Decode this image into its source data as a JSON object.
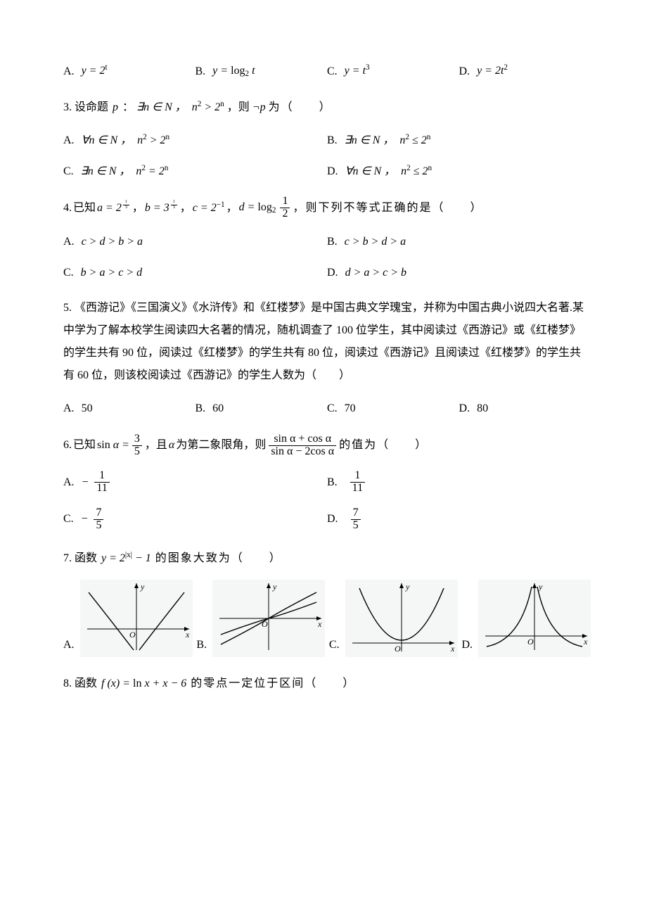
{
  "q_prev_opts": {
    "A": {
      "label": "A.",
      "math": "y = 2<sup>t</sup>"
    },
    "B": {
      "label": "B.",
      "math": "y = <span class='rm'>log</span><sub>2</sub> t"
    },
    "C": {
      "label": "C.",
      "math": "y = t<sup>3</sup>"
    },
    "D": {
      "label": "D.",
      "math": "y = 2t<sup>2</sup>"
    }
  },
  "q3": {
    "num": "3.",
    "stem_a": "设命题",
    "p": "p",
    "colon": "：",
    "exists": "∃n ∈ N ，&nbsp; n<sup>2</sup> &gt; 2<sup>n</sup>",
    "comma": "，则",
    "negp": "¬p",
    "tail": "为（　　）",
    "opts": {
      "A": {
        "label": "A.",
        "math": "∀n ∈ N ，&nbsp; n<sup>2</sup> &gt; 2<sup>n</sup>"
      },
      "B": {
        "label": "B.",
        "math": "∃n ∈ N ，&nbsp; n<sup>2</sup> ≤ 2<sup>n</sup>"
      },
      "C": {
        "label": "C.",
        "math": "∃n ∈ N ，&nbsp; n<sup>2</sup> = 2<sup>n</sup>"
      },
      "D": {
        "label": "D.",
        "math": "∀n ∈ N ，&nbsp; n<sup>2</sup> ≤ 2<sup>n</sup>"
      }
    }
  },
  "q4": {
    "num": "4.",
    "stem_a": "已知",
    "a": "a = 2",
    "b": "b = 3",
    "c": "c = 2<sup>−1</sup>",
    "d_pre": "d = <span class='rm'>log</span><sub>2</sub>",
    "exp_frac": {
      "n": "1",
      "d": "3"
    },
    "d_frac": {
      "n": "1",
      "d": "2"
    },
    "comma1": "，",
    "comma2": "，",
    "comma3": "，",
    "comma4": "，",
    "tail": "则下列不等式正确的是（　　）",
    "opts": {
      "A": {
        "label": "A.",
        "math": "c &gt; d &gt; b &gt; a"
      },
      "B": {
        "label": "B.",
        "math": "c &gt; b &gt; d &gt; a"
      },
      "C": {
        "label": "C.",
        "math": "b &gt; a &gt; c &gt; d"
      },
      "D": {
        "label": "D.",
        "math": "d &gt; a &gt; c &gt; b"
      }
    }
  },
  "q5": {
    "num": "5.",
    "stem": "《西游记》《三国演义》《水浒传》和《红楼梦》是中国古典文学瑰宝，并称为中国古典小说四大名著.某中学为了解本校学生阅读四大名著的情况，随机调查了 100 位学生，其中阅读过《西游记》或《红楼梦》的学生共有 90 位，阅读过《红楼梦》的学生共有 80 位，阅读过《西游记》且阅读过《红楼梦》的学生共有 60 位，则该校阅读过《西游记》的学生人数为（　　）",
    "opts": {
      "A": {
        "label": "A.",
        "val": "50"
      },
      "B": {
        "label": "B.",
        "val": "60"
      },
      "C": {
        "label": "C.",
        "val": "70"
      },
      "D": {
        "label": "D.",
        "val": "80"
      }
    }
  },
  "q6": {
    "num": "6.",
    "stem_a": "已知",
    "sin": "<span class='rm'>sin</span> α = ",
    "frac35": {
      "n": "3",
      "d": "5"
    },
    "mid": "，且",
    "alpha": "α",
    "mid2": "为第二象限角，则",
    "expr_num": "<span class='rm'>sin</span> α + <span class='rm'>cos</span> α",
    "expr_den": "<span class='rm'>sin</span> α − 2<span class='rm'>cos</span> α",
    "tail": "的值为（　　）",
    "opts": {
      "A": {
        "label": "A.",
        "sign": "−",
        "n": "1",
        "d": "11"
      },
      "B": {
        "label": "B.",
        "sign": "",
        "n": "1",
        "d": "11"
      },
      "C": {
        "label": "C.",
        "sign": "−",
        "n": "7",
        "d": "5"
      },
      "D": {
        "label": "D.",
        "sign": "",
        "n": "7",
        "d": "5"
      }
    }
  },
  "q7": {
    "num": "7.",
    "stem_a": "函数",
    "func": "y = 2<sup>|x|</sup> − 1",
    "tail": "的图象大致为（　　）",
    "labels": {
      "A": "A.",
      "B": "B.",
      "C": "C.",
      "D": "D."
    },
    "axis": {
      "y": "y",
      "x": "x",
      "O": "O"
    },
    "graph": {
      "w": 160,
      "h": 110,
      "bg": "#f5f6f6",
      "axis_color": "#000000",
      "curve_color": "#000000"
    }
  },
  "q8": {
    "num": "8.",
    "stem_a": "函数",
    "func": "f (x) = <span class='rm'>ln</span> x + x − 6",
    "tail": "的零点一定位于区间（　　）"
  }
}
